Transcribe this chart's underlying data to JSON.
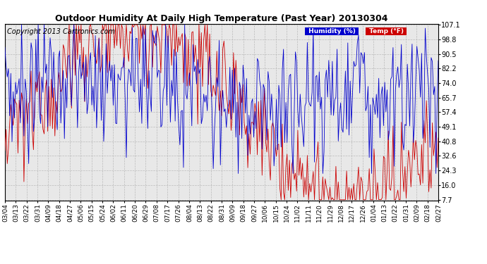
{
  "title": "Outdoor Humidity At Daily High Temperature (Past Year) 20130304",
  "copyright": "Copyright 2013 Cartronics.com",
  "legend_humidity": "Humidity (%)",
  "legend_temp": "Temp (°F)",
  "humidity_color": "#0000CC",
  "temp_color": "#CC0000",
  "bg_color": "#FFFFFF",
  "plot_bg_color": "#E8E8E8",
  "grid_color": "#BBBBBB",
  "yticks": [
    7.7,
    16.0,
    24.3,
    32.6,
    40.8,
    49.1,
    57.4,
    65.7,
    74.0,
    82.2,
    90.5,
    98.8,
    107.1
  ],
  "xtick_labels": [
    "03/04",
    "03/13",
    "03/22",
    "03/31",
    "04/09",
    "04/18",
    "04/27",
    "05/06",
    "05/15",
    "05/24",
    "06/02",
    "06/11",
    "06/20",
    "06/29",
    "07/08",
    "07/17",
    "07/26",
    "08/04",
    "08/13",
    "08/22",
    "08/31",
    "09/09",
    "09/18",
    "09/27",
    "10/06",
    "10/15",
    "10/24",
    "11/02",
    "11/11",
    "11/20",
    "11/29",
    "12/08",
    "12/17",
    "12/26",
    "01/04",
    "01/13",
    "01/22",
    "01/31",
    "02/09",
    "02/18",
    "02/27"
  ],
  "ymin": 7.7,
  "ymax": 107.1,
  "title_fontsize": 9,
  "tick_fontsize": 7,
  "copyright_fontsize": 7
}
